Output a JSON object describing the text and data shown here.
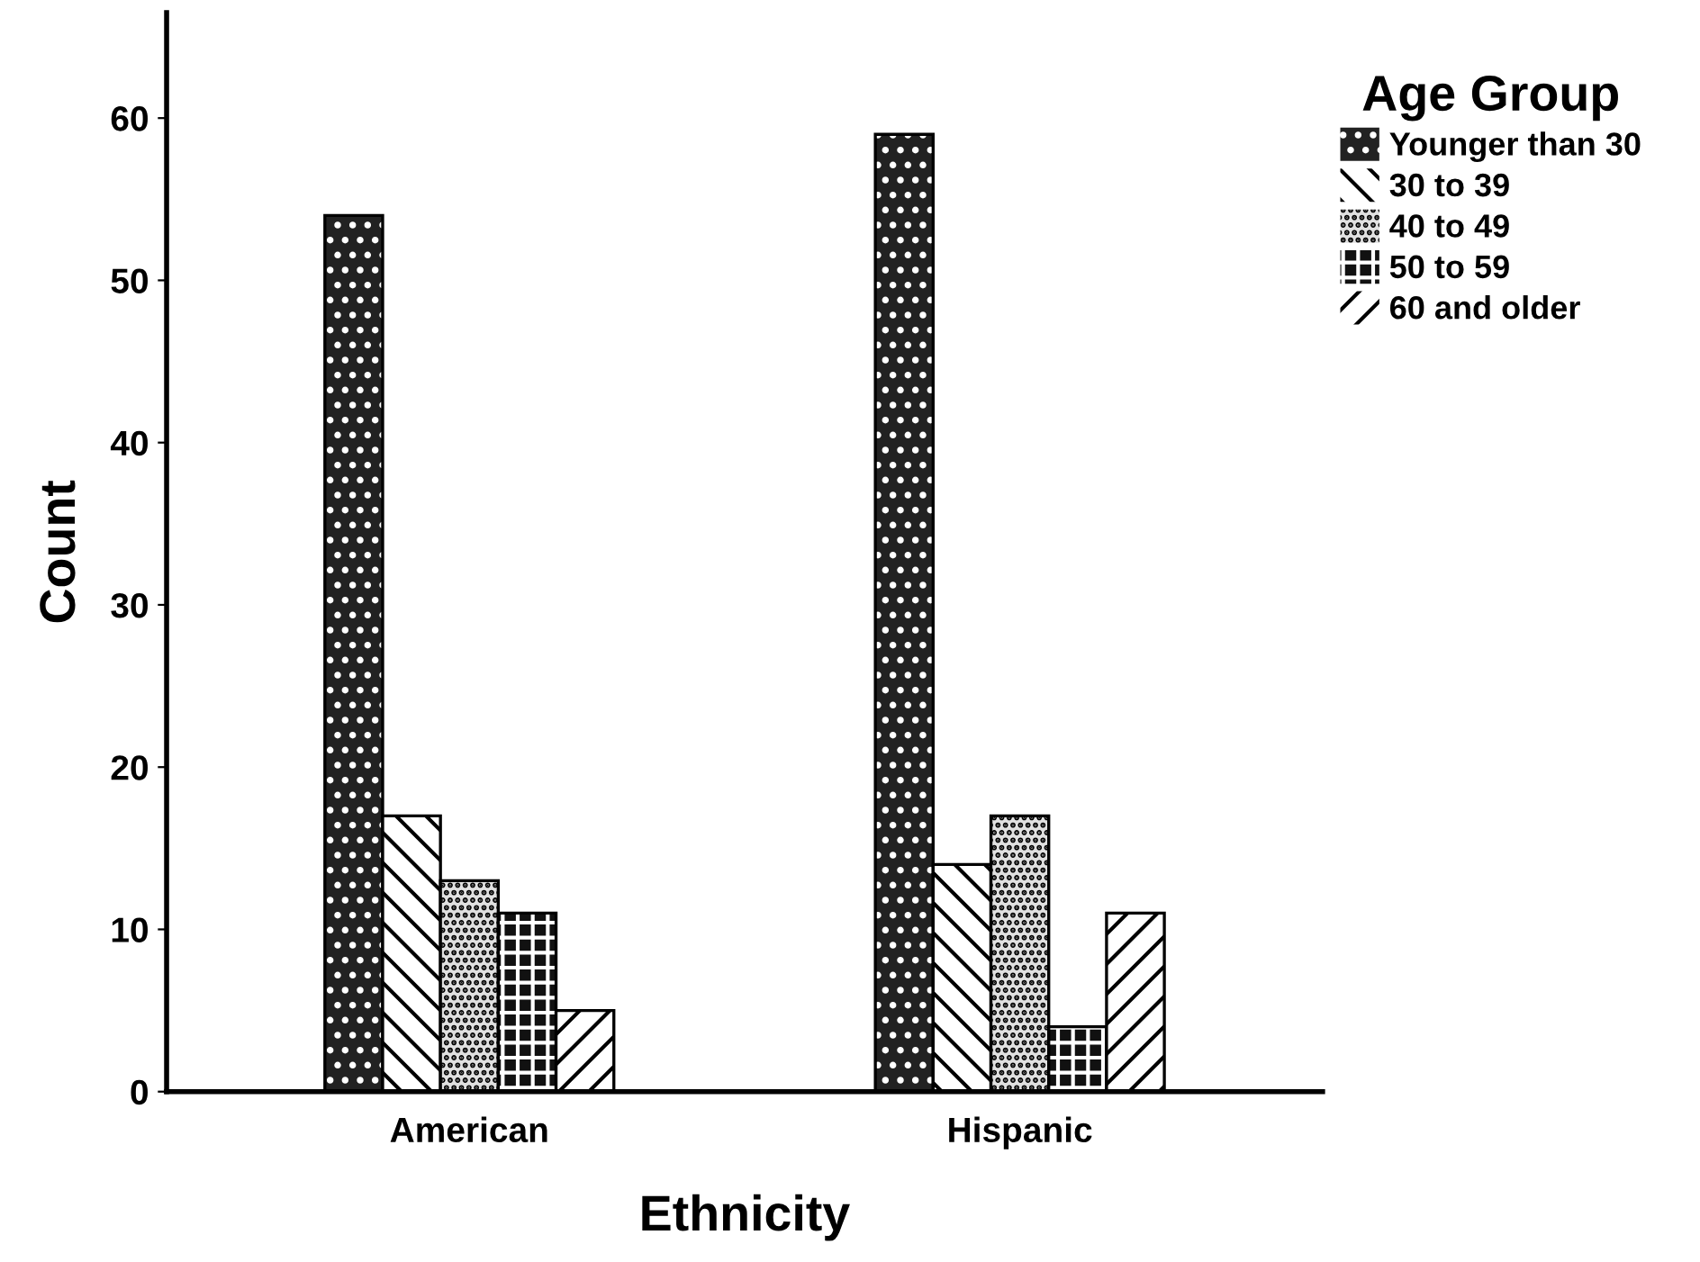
{
  "chart_data": {
    "type": "bar",
    "xlabel": "Ethnicity",
    "ylabel": "Count",
    "legend_title": "Age Group",
    "categories": [
      "American",
      "Hispanic"
    ],
    "series": [
      {
        "name": "Younger than 30",
        "color": "#222222",
        "values": [
          54,
          59
        ]
      },
      {
        "name": "30 to 39",
        "color": "#ffffff",
        "values": [
          17,
          14
        ]
      },
      {
        "name": "40 to 49",
        "color": "#e0e0e0",
        "values": [
          13,
          17
        ]
      },
      {
        "name": "50 to 59",
        "color": "#111111",
        "values": [
          11,
          4
        ]
      },
      {
        "name": "60 and older",
        "color": "#ffffff",
        "values": [
          5,
          11
        ]
      }
    ],
    "ylim": [
      0,
      66.5
    ],
    "yticks": [
      0,
      10,
      20,
      30,
      40,
      50,
      60
    ],
    "grid": false,
    "legend": "right"
  }
}
